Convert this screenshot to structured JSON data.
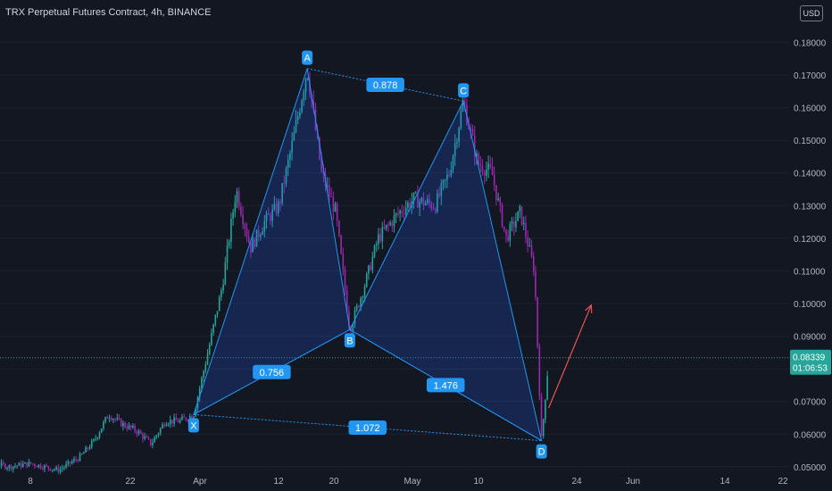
{
  "title": "TRX Perpetual Futures Contract, 4h, BINANCE",
  "currency": "USD",
  "chart_data": {
    "type": "candlestick",
    "colors": {
      "background": "#131722",
      "up": "#26a69a",
      "down": "#9c27b0",
      "pattern": "#2196f3",
      "pattern_fill": "rgba(41,98,255,0.20)",
      "arrow": "#ef5350",
      "price_tag": "#26a69a",
      "axis_text": "#b2b5be",
      "price_line": "#26a69a",
      "grid": "#1e222d"
    },
    "y_axis": {
      "ticks": [
        "0.05000",
        "0.06000",
        "0.07000",
        "0.08000",
        "0.09000",
        "0.10000",
        "0.11000",
        "0.12000",
        "0.13000",
        "0.14000",
        "0.15000",
        "0.16000",
        "0.17000",
        "0.18000"
      ],
      "ylim": [
        0.0475,
        0.1875
      ]
    },
    "x_axis": {
      "ticks": [
        "8",
        "22",
        "Apr",
        "12",
        "20",
        "May",
        "10",
        "24",
        "Jun",
        "14",
        "22"
      ]
    },
    "current_price": {
      "value": "0.08339",
      "countdown": "01:06:53"
    },
    "pattern": {
      "points": [
        {
          "label": "X",
          "date": "Mar 31",
          "price": 0.066
        },
        {
          "label": "A",
          "date": "Apr 16",
          "price": 0.172
        },
        {
          "label": "B",
          "date": "Apr 22",
          "price": 0.092
        },
        {
          "label": "C",
          "date": "May 8",
          "price": 0.162
        },
        {
          "label": "D",
          "date": "May 19",
          "price": 0.058
        }
      ],
      "ratios": [
        {
          "label": "0.878",
          "from": "A",
          "to": "C"
        },
        {
          "label": "0.756",
          "from": "X",
          "to": "B"
        },
        {
          "label": "1.476",
          "from": "B",
          "to": "D"
        },
        {
          "label": "1.072",
          "from": "X",
          "to": "D"
        }
      ]
    },
    "price_path": [
      [
        "Feb 25",
        0.051
      ],
      [
        "Mar 1",
        0.052
      ],
      [
        "Mar 5",
        0.05
      ],
      [
        "Mar 8",
        0.051
      ],
      [
        "Mar 12",
        0.049
      ],
      [
        "Mar 15",
        0.053
      ],
      [
        "Mar 17",
        0.058
      ],
      [
        "Mar 19",
        0.066
      ],
      [
        "Mar 21",
        0.063
      ],
      [
        "Mar 23",
        0.061
      ],
      [
        "Mar 25",
        0.057
      ],
      [
        "Mar 27",
        0.064
      ],
      [
        "Mar 29",
        0.064
      ],
      [
        "Mar 31",
        0.066
      ],
      [
        "Apr 2",
        0.085
      ],
      [
        "Apr 4",
        0.105
      ],
      [
        "Apr 6",
        0.135
      ],
      [
        "Apr 8",
        0.117
      ],
      [
        "Apr 10",
        0.125
      ],
      [
        "Apr 12",
        0.13
      ],
      [
        "Apr 14",
        0.15
      ],
      [
        "Apr 16",
        0.172
      ],
      [
        "Apr 18",
        0.14
      ],
      [
        "Apr 20",
        0.128
      ],
      [
        "Apr 22",
        0.092
      ],
      [
        "Apr 24",
        0.105
      ],
      [
        "Apr 26",
        0.12
      ],
      [
        "Apr 29",
        0.128
      ],
      [
        "May 1",
        0.132
      ],
      [
        "May 4",
        0.13
      ],
      [
        "May 6",
        0.14
      ],
      [
        "May 8",
        0.162
      ],
      [
        "May 10",
        0.143
      ],
      [
        "May 12",
        0.14
      ],
      [
        "May 14",
        0.12
      ],
      [
        "May 16",
        0.128
      ],
      [
        "May 18",
        0.11
      ],
      [
        "May 19",
        0.058
      ],
      [
        "May 20",
        0.083
      ]
    ],
    "projection": {
      "from": {
        "date": "May 20",
        "price": 0.068
      },
      "to": {
        "date": "May 26",
        "price": 0.0995
      }
    }
  }
}
